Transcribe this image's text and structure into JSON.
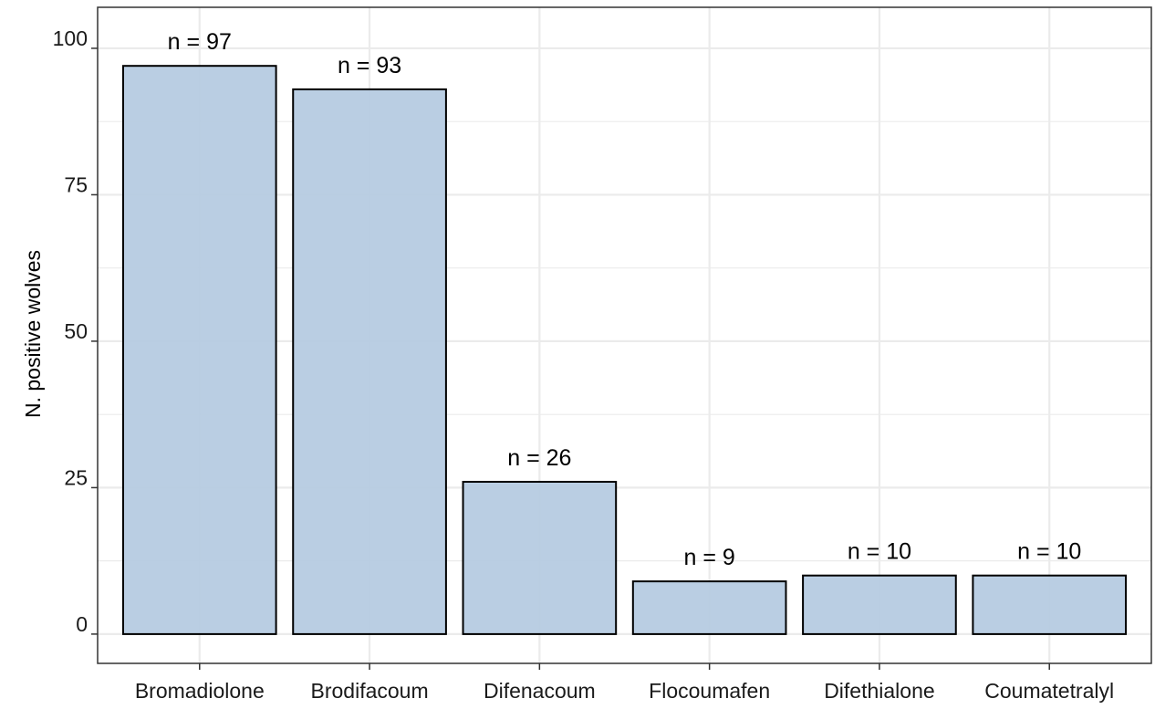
{
  "chart_data": {
    "type": "bar",
    "title": "",
    "xlabel": "",
    "ylabel": "N. positive wolves",
    "categories": [
      "Bromadiolone",
      "Brodifacoum",
      "Difenacoum",
      "Flocoumafen",
      "Difethialone",
      "Coumatetralyl"
    ],
    "values": [
      97,
      93,
      26,
      9,
      10,
      10
    ],
    "labels": [
      "n = 97",
      "n = 93",
      "n = 26",
      "n = 9",
      "n = 10",
      "n = 10"
    ],
    "ylim": [
      -5,
      107
    ],
    "yticks": [
      "0",
      "25",
      "50",
      "75",
      "100"
    ],
    "grid": true,
    "legend": "none",
    "colors": {
      "bar_fill": "#b6cbe1",
      "bar_stroke": "#000000",
      "grid": "#ebebeb",
      "axis": "#333333"
    }
  }
}
